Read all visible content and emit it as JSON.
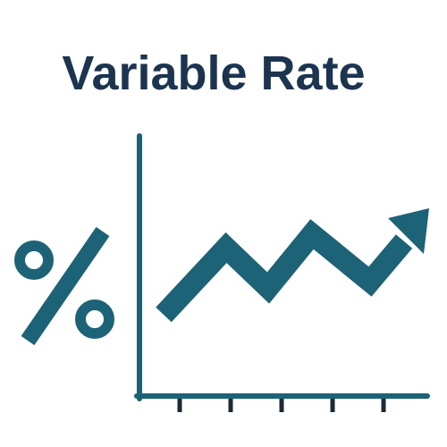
{
  "title": "Variable Rate",
  "colors": {
    "title": "#1b344f",
    "illustration": "#1c6378",
    "tick": "#1b2a33",
    "background": "#ffffff"
  },
  "icons": {
    "percent": "percent-icon",
    "trend": "trend-up-arrow-icon",
    "axes": "chart-axes-icon"
  }
}
